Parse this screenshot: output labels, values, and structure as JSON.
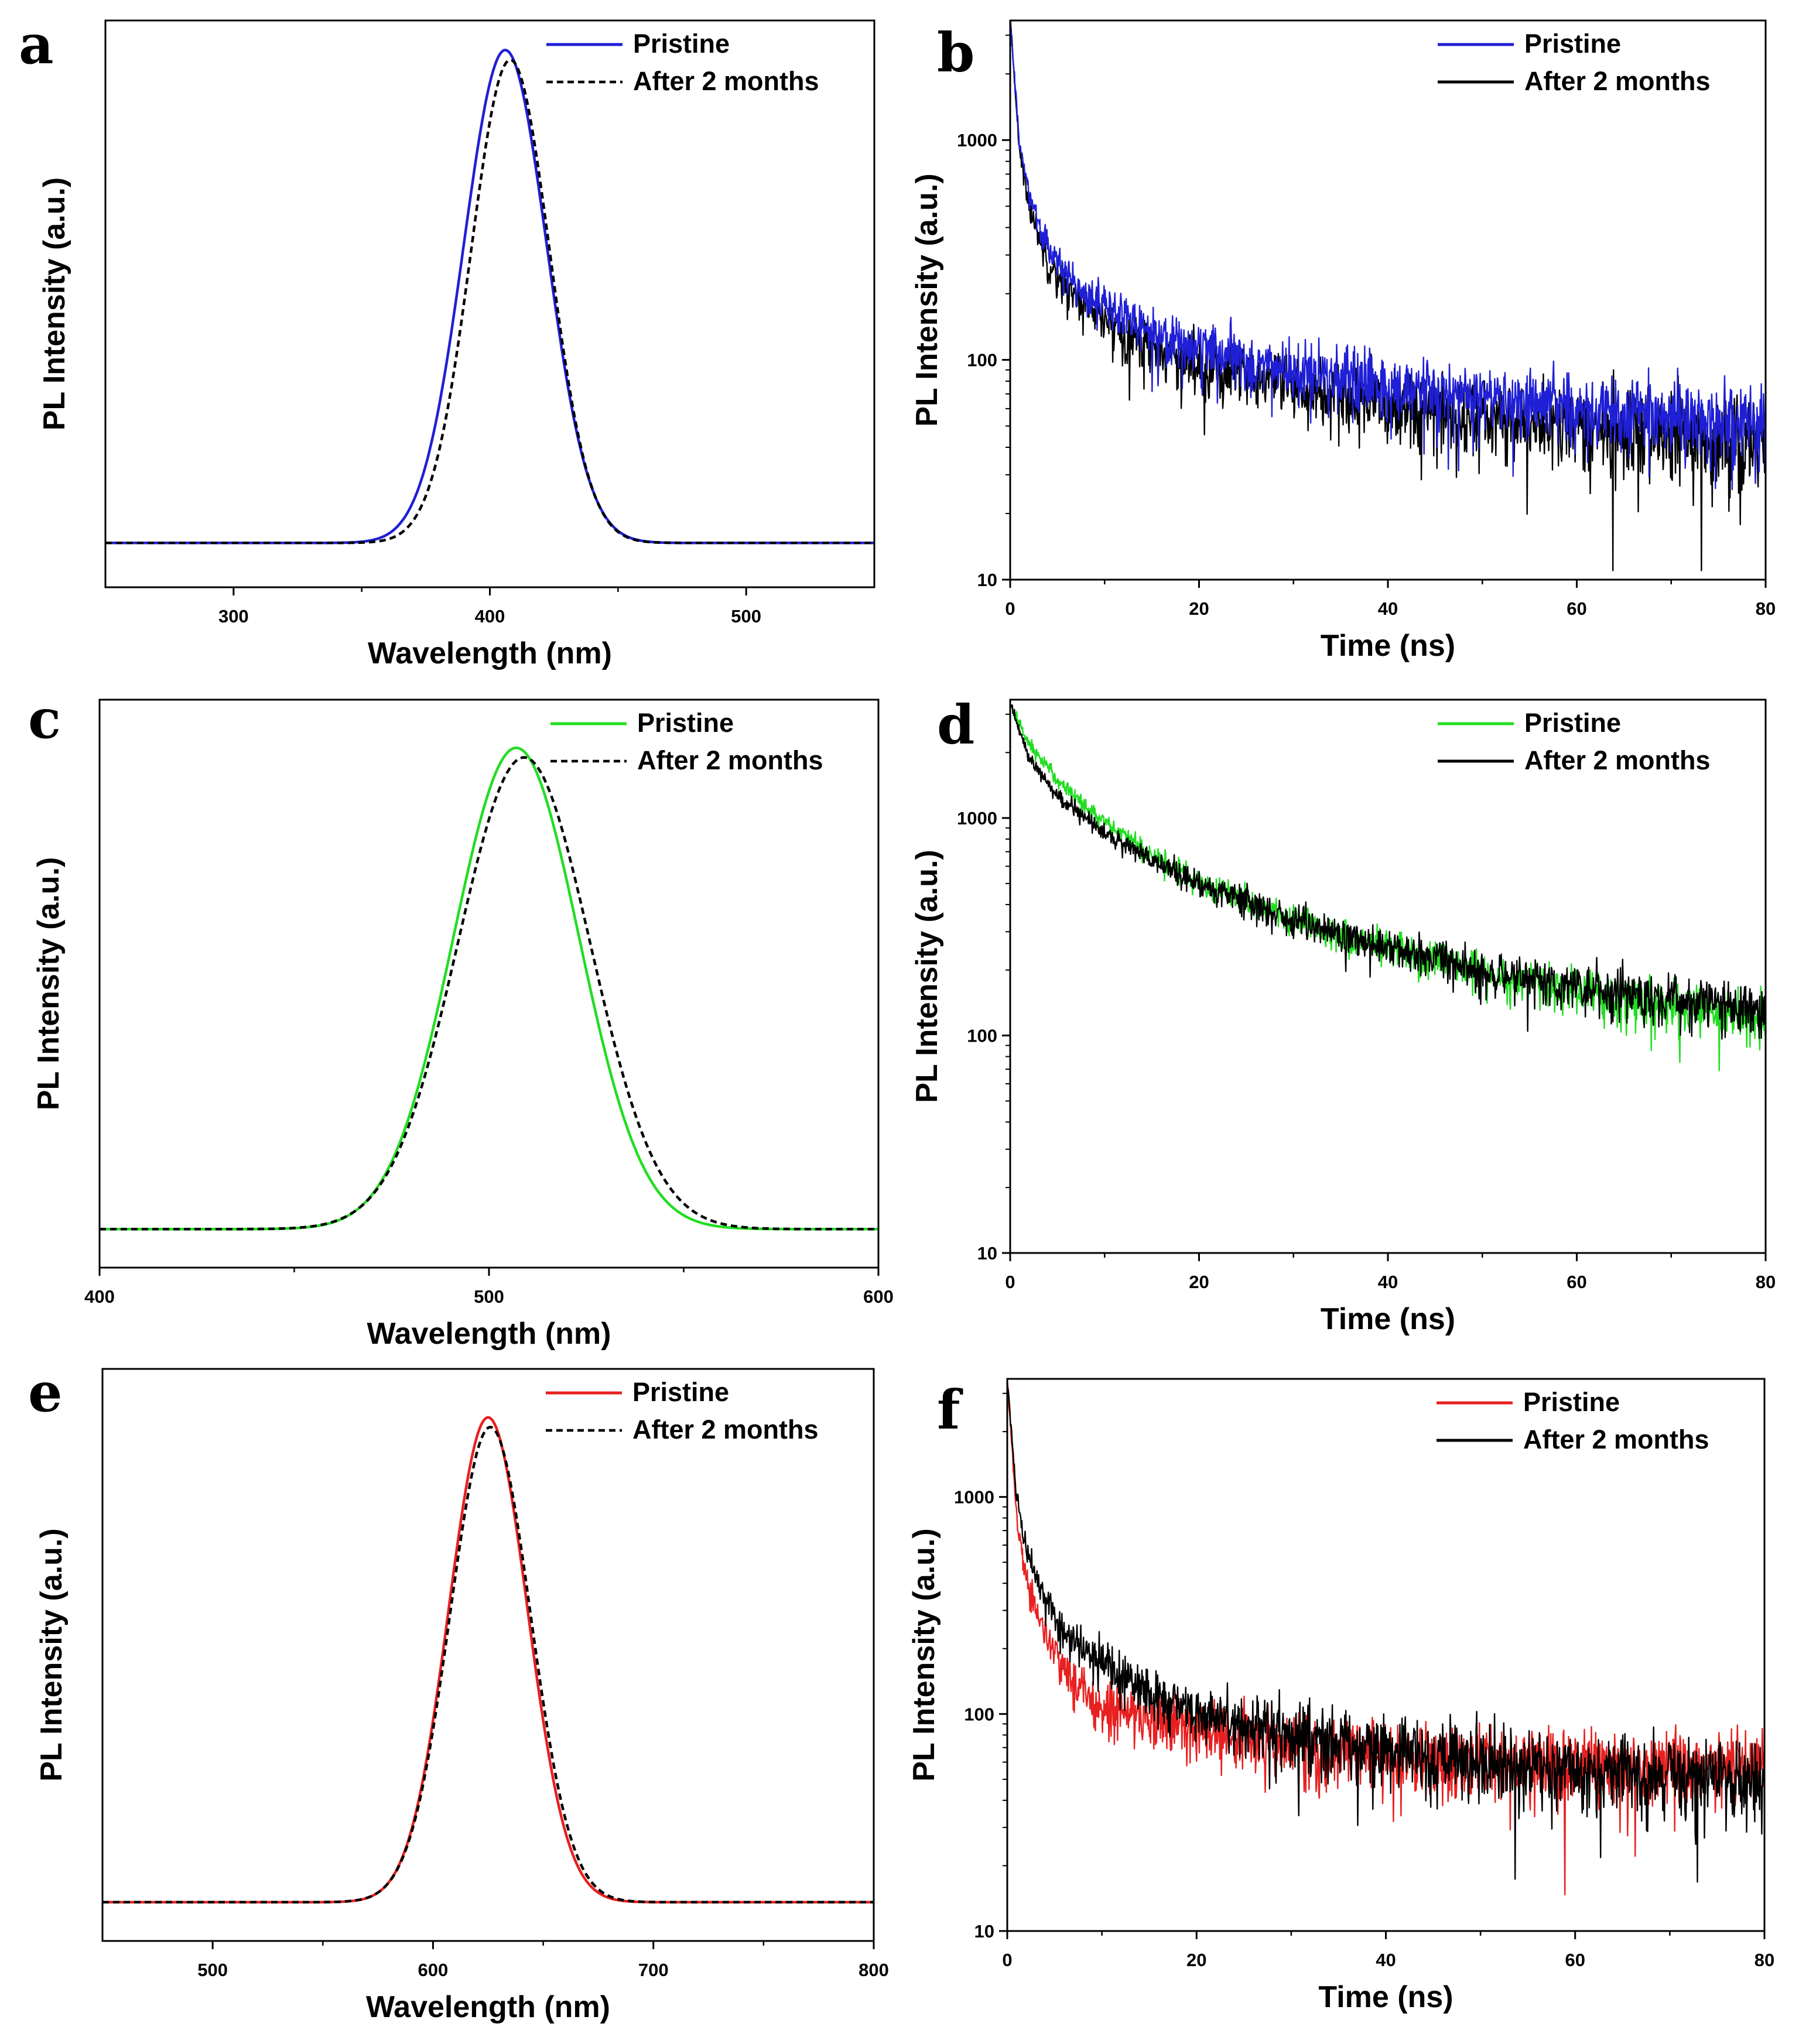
{
  "figure": {
    "legend_labels": [
      "Pristine",
      "After 2 months"
    ]
  },
  "chart_data": [
    {
      "panel": "a",
      "type": "line",
      "scale": "linear",
      "xlabel": "Wavelength (nm)",
      "ylabel": "PL Intensity (a.u.)",
      "xlim": [
        250,
        550
      ],
      "ylim": [
        -0.09,
        1.06
      ],
      "x_ticks": [
        300,
        400,
        500
      ],
      "y_ticks": [],
      "series": [
        {
          "name": "Pristine",
          "color": "#1f1fd6",
          "style": "solid",
          "peak_x": 406,
          "peak_y": 1.0,
          "fwhm_nm": 38,
          "baseline": 0
        },
        {
          "name": "After 2 months",
          "color": "#000000",
          "style": "dashed",
          "peak_x": 408,
          "peak_y": 0.98,
          "fwhm_nm": 36,
          "baseline": 0
        }
      ]
    },
    {
      "panel": "b",
      "type": "line",
      "scale": "log",
      "xlabel": "Time (ns)",
      "ylabel": "PL Intensity (a.u.)",
      "xlim": [
        0,
        80
      ],
      "ylim": [
        10,
        3500
      ],
      "x_ticks": [
        0,
        20,
        40,
        60,
        80
      ],
      "y_ticks": [
        10,
        100,
        1000
      ],
      "series": [
        {
          "name": "After 2 months",
          "color": "#000000",
          "style": "solid",
          "noisy": true,
          "x": [
            0,
            1,
            2,
            4,
            6,
            10,
            15,
            20,
            30,
            40,
            50,
            60,
            70,
            80
          ],
          "y": [
            3500,
            900,
            500,
            280,
            210,
            150,
            115,
            95,
            75,
            62,
            55,
            50,
            45,
            42
          ]
        },
        {
          "name": "Pristine",
          "color": "#1f1fd6",
          "style": "solid",
          "noisy": true,
          "x": [
            0,
            1,
            2,
            4,
            6,
            10,
            15,
            20,
            30,
            40,
            50,
            60,
            70,
            80
          ],
          "y": [
            3500,
            950,
            560,
            320,
            240,
            175,
            135,
            112,
            88,
            74,
            66,
            60,
            55,
            52
          ]
        }
      ]
    },
    {
      "panel": "c",
      "type": "line",
      "scale": "linear",
      "xlabel": "Wavelength (nm)",
      "ylabel": "PL Intensity (a.u.)",
      "xlim": [
        400,
        600
      ],
      "ylim": [
        -0.08,
        1.1
      ],
      "x_ticks": [
        400,
        500,
        600
      ],
      "y_ticks": [],
      "series": [
        {
          "name": "Pristine",
          "color": "#22dd22",
          "style": "solid",
          "peak_x": 507,
          "peak_y": 1.0,
          "fwhm_nm": 38,
          "baseline": 0
        },
        {
          "name": "After 2 months",
          "color": "#000000",
          "style": "dashed",
          "peak_x": 509,
          "peak_y": 0.98,
          "fwhm_nm": 40,
          "baseline": 0
        }
      ]
    },
    {
      "panel": "d",
      "type": "line",
      "scale": "log",
      "xlabel": "Time (ns)",
      "ylabel": "PL Intensity (a.u.)",
      "xlim": [
        0,
        80
      ],
      "ylim": [
        10,
        3500
      ],
      "x_ticks": [
        0,
        20,
        40,
        60,
        80
      ],
      "y_ticks": [
        10,
        100,
        1000
      ],
      "series": [
        {
          "name": "Pristine",
          "color": "#22dd22",
          "style": "solid",
          "noisy": true,
          "x": [
            0,
            2,
            5,
            10,
            15,
            20,
            30,
            40,
            50,
            60,
            70,
            80
          ],
          "y": [
            3300,
            2200,
            1500,
            950,
            680,
            510,
            340,
            250,
            195,
            160,
            135,
            118
          ]
        },
        {
          "name": "After 2 months",
          "color": "#000000",
          "style": "solid",
          "noisy": true,
          "x": [
            0,
            2,
            5,
            10,
            15,
            20,
            30,
            40,
            50,
            60,
            70,
            80
          ],
          "y": [
            3300,
            1900,
            1250,
            850,
            640,
            500,
            340,
            255,
            200,
            168,
            145,
            130
          ]
        }
      ]
    },
    {
      "panel": "e",
      "type": "line",
      "scale": "linear",
      "xlabel": "Wavelength (nm)",
      "ylabel": "PL Intensity (a.u.)",
      "xlim": [
        450,
        800
      ],
      "ylim": [
        -0.08,
        1.1
      ],
      "x_ticks": [
        500,
        600,
        700,
        800
      ],
      "y_ticks": [],
      "series": [
        {
          "name": "Pristine",
          "color": "#e82020",
          "style": "solid",
          "peak_x": 625,
          "peak_y": 1.0,
          "fwhm_nm": 42,
          "baseline": 0
        },
        {
          "name": "After 2 months",
          "color": "#000000",
          "style": "dashed",
          "peak_x": 626,
          "peak_y": 0.98,
          "fwhm_nm": 43,
          "baseline": 0
        }
      ]
    },
    {
      "panel": "f",
      "type": "line",
      "scale": "log",
      "xlabel": "Time (ns)",
      "ylabel": "PL Intensity (a.u.)",
      "xlim": [
        0,
        80
      ],
      "ylim": [
        10,
        3500
      ],
      "x_ticks": [
        0,
        20,
        40,
        60,
        80
      ],
      "y_ticks": [
        10,
        100,
        1000
      ],
      "series": [
        {
          "name": "Pristine",
          "color": "#e82020",
          "style": "solid",
          "noisy": true,
          "x": [
            0,
            1,
            2,
            4,
            6,
            10,
            15,
            20,
            30,
            40,
            50,
            60,
            70,
            80
          ],
          "y": [
            3500,
            800,
            420,
            230,
            160,
            110,
            95,
            85,
            72,
            63,
            60,
            58,
            57,
            56
          ]
        },
        {
          "name": "After 2 months",
          "color": "#000000",
          "style": "solid",
          "noisy": true,
          "x": [
            0,
            1,
            2,
            4,
            6,
            10,
            15,
            20,
            30,
            40,
            50,
            60,
            70,
            80
          ],
          "y": [
            3500,
            1000,
            560,
            330,
            240,
            165,
            125,
            100,
            80,
            68,
            60,
            56,
            53,
            52
          ]
        }
      ]
    }
  ]
}
